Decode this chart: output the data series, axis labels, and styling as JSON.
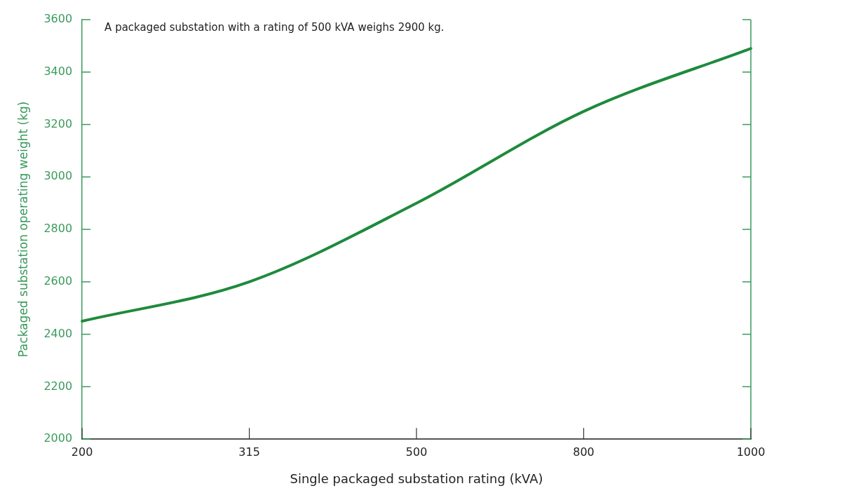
{
  "chart_data": {
    "type": "line",
    "xlabel": "Single packaged substation rating (kVA)",
    "ylabel": "Packaged substation operating weight (kg)",
    "annotations": [
      "A packaged substation with a rating of 500 kVA weighs 2900 kg."
    ],
    "categories": [
      "200",
      "315",
      "500",
      "800",
      "1000"
    ],
    "series": [
      {
        "color": "#1e8a3c",
        "values": [
          2450,
          2600,
          2900,
          3250,
          3490
        ]
      }
    ],
    "ylim": [
      2000,
      3600
    ],
    "yticks": [
      2000,
      2200,
      2400,
      2600,
      2800,
      3000,
      3200,
      3400,
      3600
    ],
    "grid": false,
    "legend": false,
    "marker": "none",
    "line_style": "solid"
  }
}
